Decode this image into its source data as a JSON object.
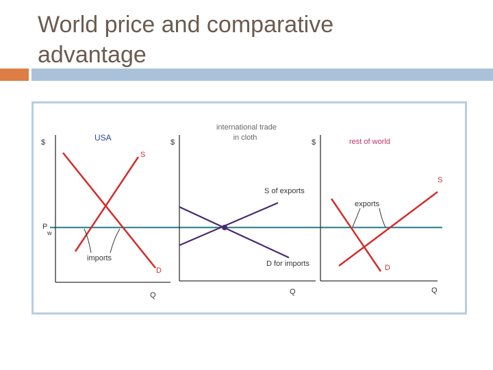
{
  "slide": {
    "title_line1": "World price and comparative",
    "title_line2": "advantage"
  },
  "colors": {
    "title": "#6b5a4e",
    "accent_orange": "#dd7e44",
    "accent_blue": "#a9c2d9",
    "supply_demand_red": "#d42a2a",
    "world_price_line": "#3b8a95",
    "trade_curves": "#4a2a6e",
    "usa_label": "#2f3fa3",
    "rest_label": "#c2306b"
  },
  "diagram": {
    "usa": {
      "title": "USA",
      "y_axis": "$",
      "x_axis": "Q",
      "supply_label": "S",
      "demand_label": "D",
      "world_price_label_p": "P",
      "world_price_label_sub": "w",
      "imports_label": "imports"
    },
    "trade": {
      "title_line1": "international trade",
      "title_line2": "in cloth",
      "y_axis": "$",
      "x_axis": "Q",
      "supply_exports_label": "S of exports",
      "demand_imports_label": "D for imports"
    },
    "rest": {
      "title": "rest of world",
      "y_axis": "$",
      "x_axis": "Q",
      "supply_label": "S",
      "demand_label": "D",
      "exports_label": "exports"
    }
  }
}
